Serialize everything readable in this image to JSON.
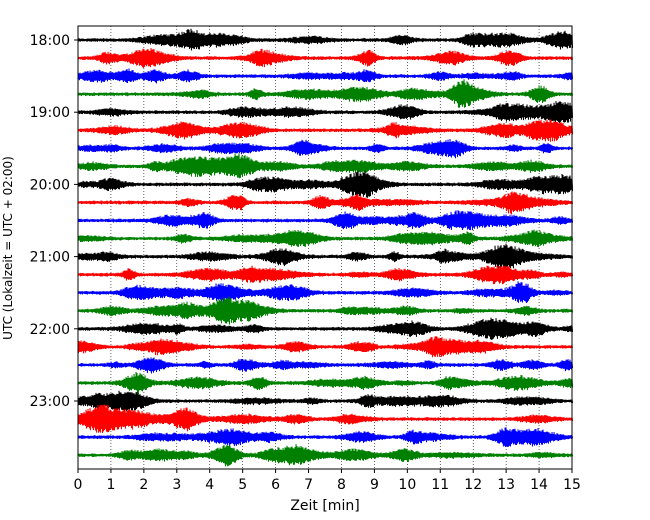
{
  "chart_data": {
    "type": "line",
    "title": "",
    "xlabel": "Zeit  [min]",
    "ylabel": "UTC (Lokalzeit = UTC + 02:00)",
    "xlim": [
      0,
      15
    ],
    "x_ticks": [
      "0",
      "1",
      "2",
      "3",
      "4",
      "5",
      "6",
      "7",
      "8",
      "9",
      "10",
      "11",
      "12",
      "13",
      "14",
      "15"
    ],
    "y_ticks": [
      "18:00",
      "19:00",
      "20:00",
      "21:00",
      "22:00",
      "23:00"
    ],
    "grid": "vertical dotted lines at each minute",
    "trace_minutes": 15,
    "trace_colors": [
      "#000000",
      "#ff0000",
      "#0000ff",
      "#008000"
    ],
    "traces": [
      {
        "start": "18:00",
        "color": "#000000"
      },
      {
        "start": "18:15",
        "color": "#ff0000"
      },
      {
        "start": "18:30",
        "color": "#0000ff"
      },
      {
        "start": "18:45",
        "color": "#008000"
      },
      {
        "start": "19:00",
        "color": "#000000"
      },
      {
        "start": "19:15",
        "color": "#ff0000"
      },
      {
        "start": "19:30",
        "color": "#0000ff"
      },
      {
        "start": "19:45",
        "color": "#008000"
      },
      {
        "start": "20:00",
        "color": "#000000"
      },
      {
        "start": "20:15",
        "color": "#ff0000"
      },
      {
        "start": "20:30",
        "color": "#0000ff"
      },
      {
        "start": "20:45",
        "color": "#008000"
      },
      {
        "start": "21:00",
        "color": "#000000"
      },
      {
        "start": "21:15",
        "color": "#ff0000"
      },
      {
        "start": "21:30",
        "color": "#0000ff"
      },
      {
        "start": "21:45",
        "color": "#008000"
      },
      {
        "start": "22:00",
        "color": "#000000"
      },
      {
        "start": "22:15",
        "color": "#ff0000"
      },
      {
        "start": "22:30",
        "color": "#0000ff"
      },
      {
        "start": "22:45",
        "color": "#008000"
      },
      {
        "start": "23:00",
        "color": "#000000"
      },
      {
        "start": "23:15",
        "color": "#ff0000"
      },
      {
        "start": "23:30",
        "color": "#0000ff"
      },
      {
        "start": "23:45",
        "color": "#008000"
      }
    ]
  }
}
